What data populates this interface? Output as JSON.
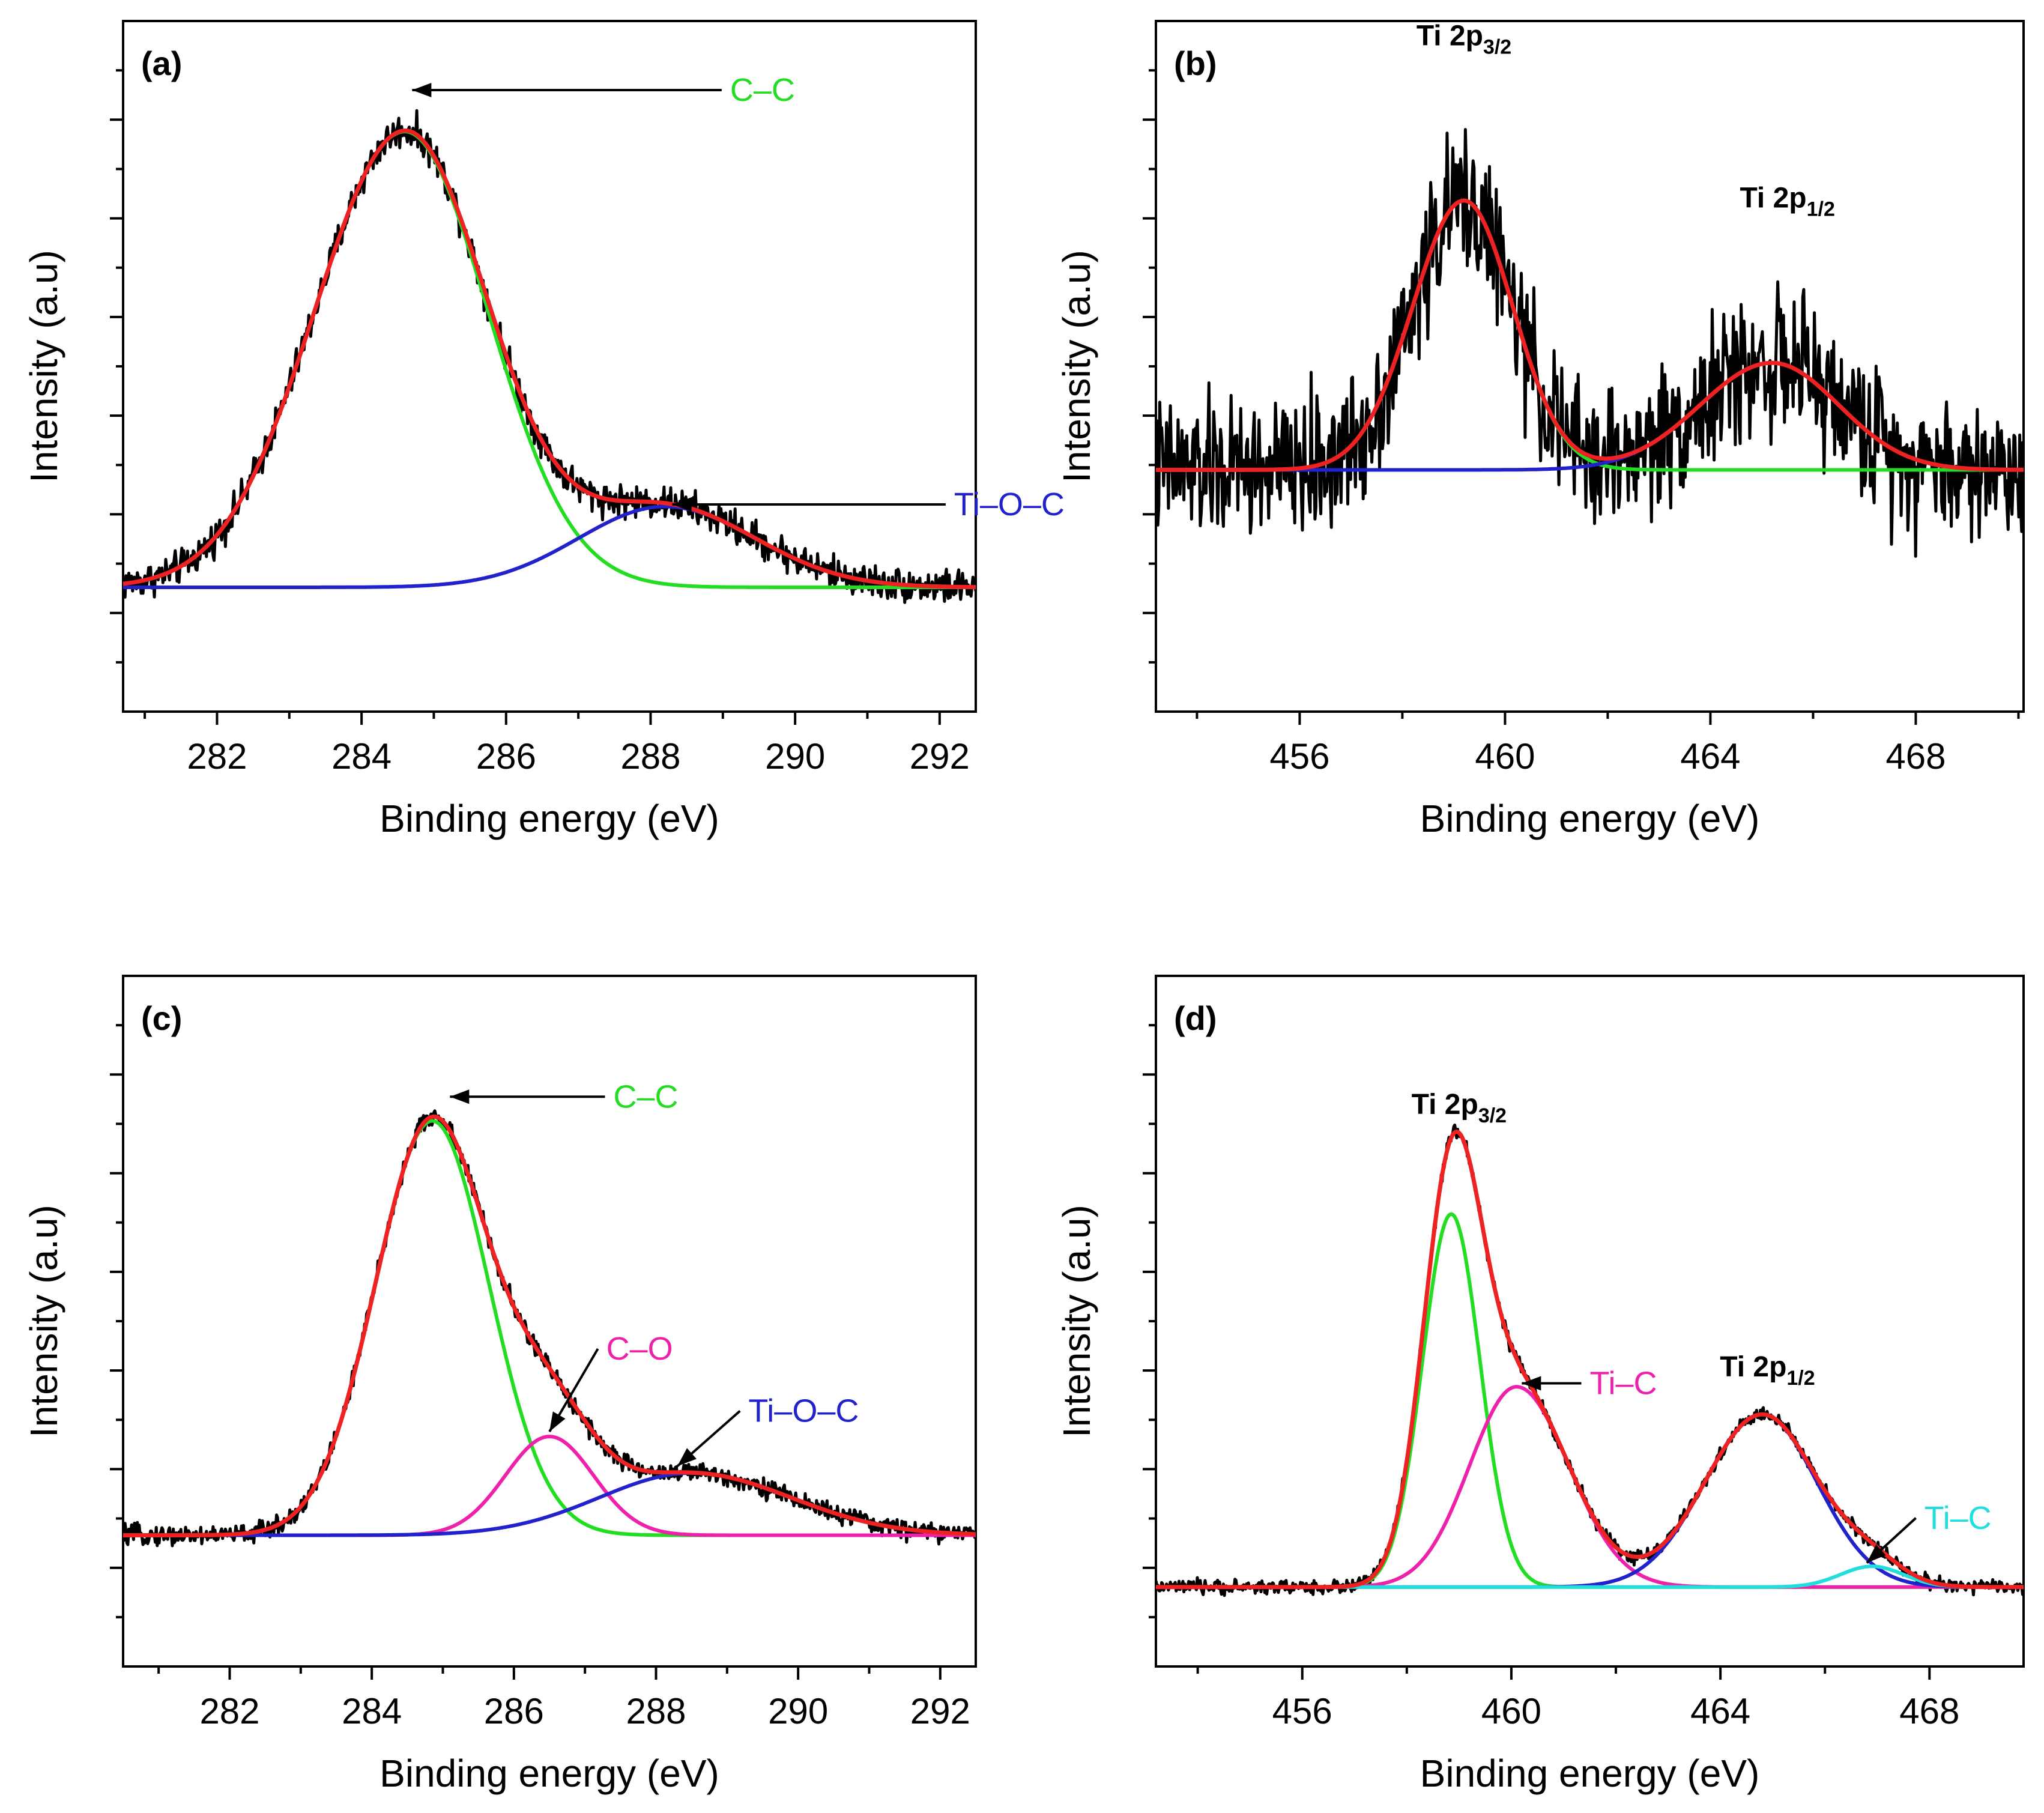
{
  "chart_data": [
    {
      "panel": "(a)",
      "type": "line",
      "xlabel": "Binding energy (eV)",
      "ylabel": "Intensity (a.u)",
      "xlim": [
        280.7,
        292.5
      ],
      "xticks": [
        282,
        284,
        286,
        288,
        290,
        292
      ],
      "ylim": [
        0,
        1
      ],
      "grid": false,
      "baseline": 0.18,
      "components": [
        {
          "name": "C–C",
          "color": "#22dd22",
          "center": 284.6,
          "amplitude": 0.66,
          "sigmaLeft": 1.25,
          "sigmaRight": 1.15
        },
        {
          "name": "Ti–O–C",
          "color": "#2222cc",
          "center": 288.2,
          "amplitude": 0.117,
          "sigmaLeft": 1.2,
          "sigmaRight": 1.25
        }
      ],
      "envelope_color": "#ee2222",
      "noise": 0.012,
      "annotations": [
        {
          "text": "C–C",
          "color": "#22dd22",
          "x": 289.1,
          "y": 0.9,
          "arrowTo": [
            284.7,
            0.9
          ]
        },
        {
          "text": "Ti–O–C",
          "color": "#2222cc",
          "x": 292.2,
          "y": 0.3,
          "arrowTo": [
            288.3,
            0.3
          ]
        }
      ]
    },
    {
      "panel": "(b)",
      "type": "line",
      "xlabel": "Binding energy (eV)",
      "ylabel": "Intensity (a.u)",
      "xlim": [
        453.2,
        470.1
      ],
      "xticks": [
        456,
        460,
        464,
        468
      ],
      "ylim": [
        0,
        1
      ],
      "grid": false,
      "baseline": 0.35,
      "components": [
        {
          "name": "Ti 2p3/2",
          "color": "#22dd22",
          "center": 459.2,
          "amplitude": 0.39,
          "sigmaLeft": 1.0,
          "sigmaRight": 0.95
        },
        {
          "name": "Ti 2p1/2",
          "color": "#2222cc",
          "center": 465.2,
          "amplitude": 0.155,
          "sigmaLeft": 1.4,
          "sigmaRight": 1.3
        }
      ],
      "envelope_color": "#ee2222",
      "noise": 0.05,
      "annotations": [],
      "peak_labels": [
        {
          "main": "Ti 2p",
          "sub": "3/2",
          "x": 459.2,
          "y": 0.965
        },
        {
          "main": "Ti 2p",
          "sub": "1/2",
          "x": 465.5,
          "y": 0.73
        }
      ]
    },
    {
      "panel": "(c)",
      "type": "line",
      "xlabel": "Binding energy (eV)",
      "ylabel": "Intensity (a.u)",
      "xlim": [
        280.5,
        292.5
      ],
      "xticks": [
        282,
        284,
        286,
        288,
        290,
        292
      ],
      "ylim": [
        0,
        1
      ],
      "grid": false,
      "baseline": 0.19,
      "components": [
        {
          "name": "C–C",
          "color": "#22dd22",
          "center": 284.85,
          "amplitude": 0.6,
          "sigmaLeft": 0.8,
          "sigmaRight": 0.8
        },
        {
          "name": "C–O",
          "color": "#ee22aa",
          "center": 286.5,
          "amplitude": 0.143,
          "sigmaLeft": 0.62,
          "sigmaRight": 0.62
        },
        {
          "name": "Ti–O–C",
          "color": "#2222cc",
          "center": 288.5,
          "amplitude": 0.09,
          "sigmaLeft": 1.3,
          "sigmaRight": 1.4
        }
      ],
      "envelope_color": "#ee2222",
      "noise": 0.007,
      "annotations": [
        {
          "text": "C–C",
          "color": "#22dd22",
          "x": 287.4,
          "y": 0.825,
          "arrowTo": [
            285.1,
            0.825
          ]
        },
        {
          "text": "C–O",
          "color": "#ee22aa",
          "x": 287.3,
          "y": 0.46,
          "arrowTo": [
            286.5,
            0.34
          ]
        },
        {
          "text": "Ti–O–C",
          "color": "#2222cc",
          "x": 289.3,
          "y": 0.37,
          "arrowTo": [
            288.3,
            0.29
          ]
        }
      ]
    },
    {
      "panel": "(d)",
      "type": "line",
      "xlabel": "Binding energy (eV)",
      "ylabel": "Intensity (a.u)",
      "xlim": [
        453.2,
        469.8
      ],
      "xticks": [
        456,
        460,
        464,
        468
      ],
      "ylim": [
        0,
        1
      ],
      "grid": false,
      "baseline": 0.115,
      "components": [
        {
          "name": "Ti 2p3/2",
          "color": "#22dd22",
          "center": 458.85,
          "amplitude": 0.54,
          "sigmaLeft": 0.55,
          "sigmaRight": 0.55
        },
        {
          "name": "Ti–C",
          "color": "#ee22aa",
          "center": 460.1,
          "amplitude": 0.29,
          "sigmaLeft": 0.9,
          "sigmaRight": 1.0
        },
        {
          "name": "Ti 2p1/2",
          "color": "#2222cc",
          "center": 464.8,
          "amplitude": 0.25,
          "sigmaLeft": 1.1,
          "sigmaRight": 1.05
        },
        {
          "name": "Ti–C",
          "color": "#22dddd",
          "center": 466.9,
          "amplitude": 0.03,
          "sigmaLeft": 0.6,
          "sigmaRight": 0.6
        }
      ],
      "envelope_color": "#ee2222",
      "noise": 0.005,
      "annotations": [
        {
          "text": "Ti–C",
          "color": "#ee22aa",
          "x": 461.5,
          "y": 0.41,
          "arrowTo": [
            460.2,
            0.41
          ]
        },
        {
          "text": "Ti–C",
          "color": "#22dddd",
          "x": 467.9,
          "y": 0.215,
          "arrowTo": [
            466.8,
            0.15
          ]
        }
      ],
      "peak_labels": [
        {
          "main": "Ti 2p",
          "sub": "3/2",
          "x": 459.0,
          "y": 0.8
        },
        {
          "main": "Ti 2p",
          "sub": "1/2",
          "x": 464.9,
          "y": 0.42
        }
      ]
    }
  ]
}
